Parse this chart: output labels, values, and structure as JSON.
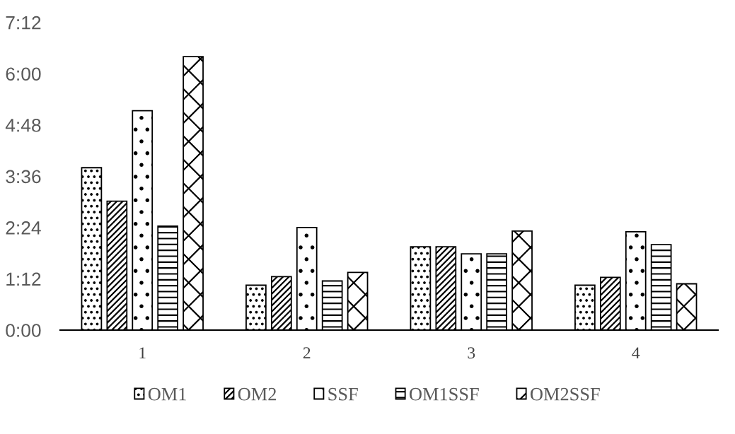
{
  "chart_data": {
    "type": "bar",
    "categories": [
      "1",
      "2",
      "3",
      "4"
    ],
    "series": [
      {
        "name": "OM1",
        "color": "#000000",
        "values": [
          228,
          63,
          117,
          63
        ]
      },
      {
        "name": "OM2",
        "color": "#000000",
        "values": [
          181,
          75,
          117,
          74
        ]
      },
      {
        "name": "SSF",
        "color": "#000000",
        "values": [
          308,
          144,
          107,
          138
        ]
      },
      {
        "name": "OM1SSF",
        "color": "#000000",
        "values": [
          146,
          69,
          107,
          120
        ]
      },
      {
        "name": "OM2SSF",
        "color": "#000000",
        "values": [
          384,
          81,
          139,
          65
        ]
      }
    ],
    "ylim": [
      0,
      432
    ],
    "yticks": [
      {
        "value": 0,
        "label": "0:00"
      },
      {
        "value": 72,
        "label": "1:12"
      },
      {
        "value": 144,
        "label": "2:24"
      },
      {
        "value": 216,
        "label": "3:36"
      },
      {
        "value": 288,
        "label": "4:48"
      },
      {
        "value": 360,
        "label": "6:00"
      },
      {
        "value": 432,
        "label": "7:12"
      }
    ],
    "legend": "bottom",
    "grid": false
  }
}
